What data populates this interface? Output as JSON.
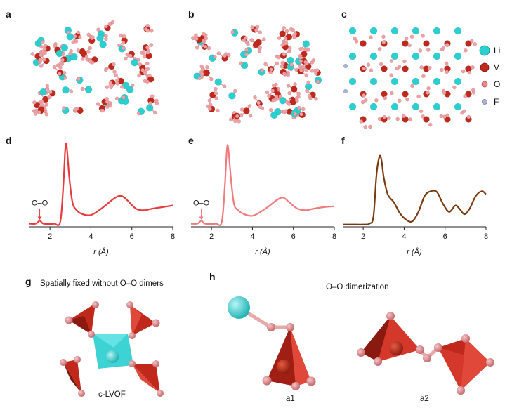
{
  "panel_labels": {
    "a": "a",
    "b": "b",
    "c": "c",
    "d": "d",
    "e": "e",
    "f": "f",
    "g": "g",
    "h": "h"
  },
  "legend": [
    {
      "label": "Li",
      "color": "#2ccfd0"
    },
    {
      "label": "V",
      "color": "#c0281c"
    },
    {
      "label": "O",
      "color": "#e8868a"
    },
    {
      "label": "F",
      "color": "#a9b1d6"
    }
  ],
  "annotations": {
    "d": "O–O",
    "e": "O–O"
  },
  "captions": {
    "g_title": "Spatially fixed without O–O dimers",
    "h_title": "O–O dimerization",
    "g_structure": "c-LVOF",
    "h_a1": "a1",
    "h_a2": "a2"
  },
  "chart_data": [
    {
      "panel": "d",
      "type": "line",
      "color": "#e8393c",
      "xlabel": "r (Å)",
      "ylabel": "",
      "xlim": [
        1,
        8
      ],
      "xticks": [
        2,
        4,
        6,
        8
      ],
      "x": [
        1.0,
        1.3,
        1.45,
        1.5,
        1.55,
        1.7,
        2.2,
        2.5,
        2.65,
        2.75,
        2.82,
        2.95,
        3.1,
        3.3,
        3.6,
        4.0,
        4.4,
        4.8,
        5.2,
        5.5,
        5.8,
        6.2,
        6.6,
        7.0,
        7.5,
        8.0
      ],
      "y": [
        0.03,
        0.03,
        0.06,
        0.07,
        0.06,
        0.03,
        0.03,
        0.05,
        0.5,
        0.98,
        1.0,
        0.6,
        0.3,
        0.2,
        0.15,
        0.14,
        0.2,
        0.28,
        0.36,
        0.38,
        0.32,
        0.22,
        0.2,
        0.22,
        0.24,
        0.26
      ]
    },
    {
      "panel": "e",
      "type": "line",
      "color": "#f07a7c",
      "xlabel": "r (Å)",
      "ylabel": "",
      "xlim": [
        1,
        8
      ],
      "xticks": [
        2,
        4,
        6,
        8
      ],
      "x": [
        1.0,
        1.3,
        1.45,
        1.5,
        1.55,
        1.7,
        2.2,
        2.5,
        2.65,
        2.75,
        2.82,
        2.95,
        3.1,
        3.3,
        3.6,
        4.0,
        4.4,
        4.8,
        5.2,
        5.5,
        5.8,
        6.2,
        6.6,
        7.0,
        7.5,
        8.0
      ],
      "y": [
        0.03,
        0.03,
        0.06,
        0.07,
        0.06,
        0.03,
        0.03,
        0.05,
        0.5,
        0.96,
        0.98,
        0.6,
        0.28,
        0.2,
        0.15,
        0.13,
        0.18,
        0.25,
        0.33,
        0.36,
        0.3,
        0.22,
        0.2,
        0.22,
        0.24,
        0.25
      ]
    },
    {
      "panel": "f",
      "type": "line",
      "color": "#7a3a10",
      "xlabel": "r (Å)",
      "ylabel": "",
      "xlim": [
        1,
        8
      ],
      "xticks": [
        2,
        4,
        6,
        8
      ],
      "x": [
        1.0,
        1.5,
        2.0,
        2.3,
        2.5,
        2.65,
        2.8,
        2.9,
        3.0,
        3.2,
        3.5,
        3.8,
        4.1,
        4.4,
        4.7,
        5.0,
        5.3,
        5.6,
        5.9,
        6.2,
        6.5,
        6.7,
        6.95,
        7.2,
        7.5,
        7.8,
        8.0
      ],
      "y": [
        0.02,
        0.02,
        0.02,
        0.03,
        0.12,
        0.65,
        0.88,
        0.82,
        0.62,
        0.4,
        0.3,
        0.16,
        0.08,
        0.06,
        0.18,
        0.38,
        0.44,
        0.43,
        0.28,
        0.18,
        0.26,
        0.22,
        0.15,
        0.22,
        0.38,
        0.44,
        0.4
      ]
    }
  ]
}
